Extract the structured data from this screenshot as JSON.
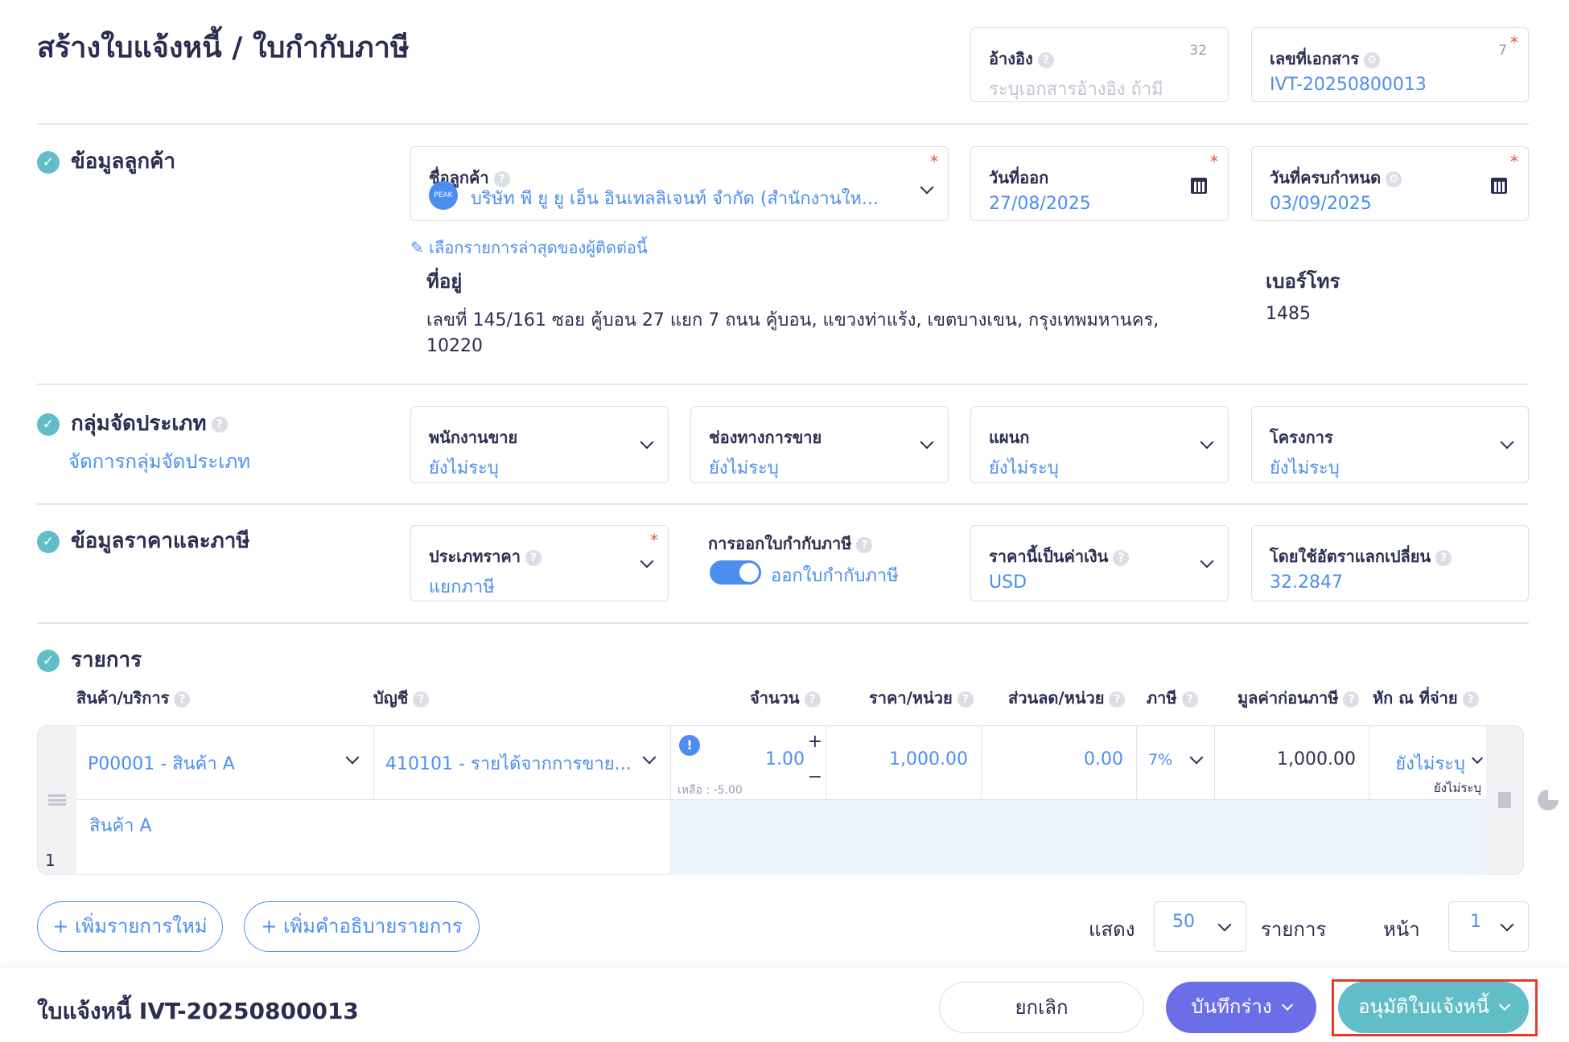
{
  "page_title": "สร้างใบแจ้งหนี้ / ใบกำกับภาษี",
  "reference": {
    "label": "อ้างอิง",
    "counter": "32",
    "placeholder": "ระบุเอกสารอ้างอิง ถ้ามี"
  },
  "doc_number": {
    "label": "เลขที่เอกสาร",
    "counter": "7",
    "value": "IVT-20250800013"
  },
  "customer_section": {
    "title": "ข้อมูลลูกค้า",
    "customer_label": "ชื่อลูกค้า",
    "avatar_text": "PEAK",
    "customer_value": "บริษัท พี ยู ยู เอ็น อินเทลลิเจนท์ จำกัด (สำนักงานให...",
    "issue_date_label": "วันที่ออก",
    "issue_date": "27/08/2025",
    "due_date_label": "วันที่ครบกำหนด",
    "due_date": "03/09/2025",
    "recent_link": "เลือกรายการล่าสุดของผู้ติดต่อนี้",
    "address_label": "ที่อยู่",
    "address_line1": "เลขที่ 145/161 ซอย คู้บอน 27 แยก 7 ถนน คู้บอน, แขวงท่าแร้ง, เขตบางเขน, กรุงเทพมหานคร,",
    "address_line2": "10220",
    "phone_label": "เบอร์โทร",
    "phone": "1485"
  },
  "group_section": {
    "title": "กลุ่มจัดประเภท",
    "manage_link": "จัดการกลุ่มจัดประเภท",
    "fields": [
      {
        "label": "พนักงานขาย",
        "value": "ยังไม่ระบุ"
      },
      {
        "label": "ช่องทางการขาย",
        "value": "ยังไม่ระบุ"
      },
      {
        "label": "แผนก",
        "value": "ยังไม่ระบุ"
      },
      {
        "label": "โครงการ",
        "value": "ยังไม่ระบุ"
      }
    ]
  },
  "price_section": {
    "title": "ข้อมูลราคาและภาษี",
    "price_type_label": "ประเภทราคา",
    "price_type": "แยกภาษี",
    "tax_invoice_label": "การออกใบกำกับภาษี",
    "tax_invoice_toggle": "ออกใบกำกับภาษี",
    "tax_invoice_on": true,
    "currency_label": "ราคานี้เป็นค่าเงิน",
    "currency": "USD",
    "rate_label": "โดยใช้อัตราแลกเปลี่ยน",
    "rate": "32.2847"
  },
  "items_section": {
    "title": "รายการ",
    "columns": [
      "สินค้า/บริการ",
      "บัญชี",
      "จำนวน",
      "ราคา/หน่วย",
      "ส่วนลด/หน่วย",
      "ภาษี",
      "มูลค่าก่อนภาษี",
      "หัก ณ ที่จ่าย"
    ],
    "rows": [
      {
        "index": "1",
        "product": "P00001 - สินค้า A",
        "account": "410101 - รายได้จากการขาย...",
        "qty": "1.00",
        "remaining": "เหลือ : -5.00",
        "price": "1,000.00",
        "discount": "0.00",
        "tax": "7%",
        "pretax": "1,000.00",
        "wht": "ยังไม่ระบุ",
        "wht_sub": "ยังไม่ระบุ",
        "description": "สินค้า A"
      }
    ]
  },
  "actions": {
    "add_item": "+ เพิ่มรายการใหม่",
    "add_desc": "+ เพิ่มคำอธิบายรายการ",
    "show_label": "แสดง",
    "page_size": "50",
    "items_label": "รายการ",
    "page_label": "หน้า",
    "page": "1"
  },
  "footer": {
    "doc_title": "ใบแจ้งหนี้ IVT-20250800013",
    "cancel": "ยกเลิก",
    "save_draft": "บันทึกร่าง",
    "approve": "อนุมัติใบแจ้งหนี้"
  },
  "colors": {
    "accent": "#4c8ef0",
    "teal": "#62bec6",
    "purple": "#6c6ee8",
    "highlight": "#e53a2a"
  }
}
